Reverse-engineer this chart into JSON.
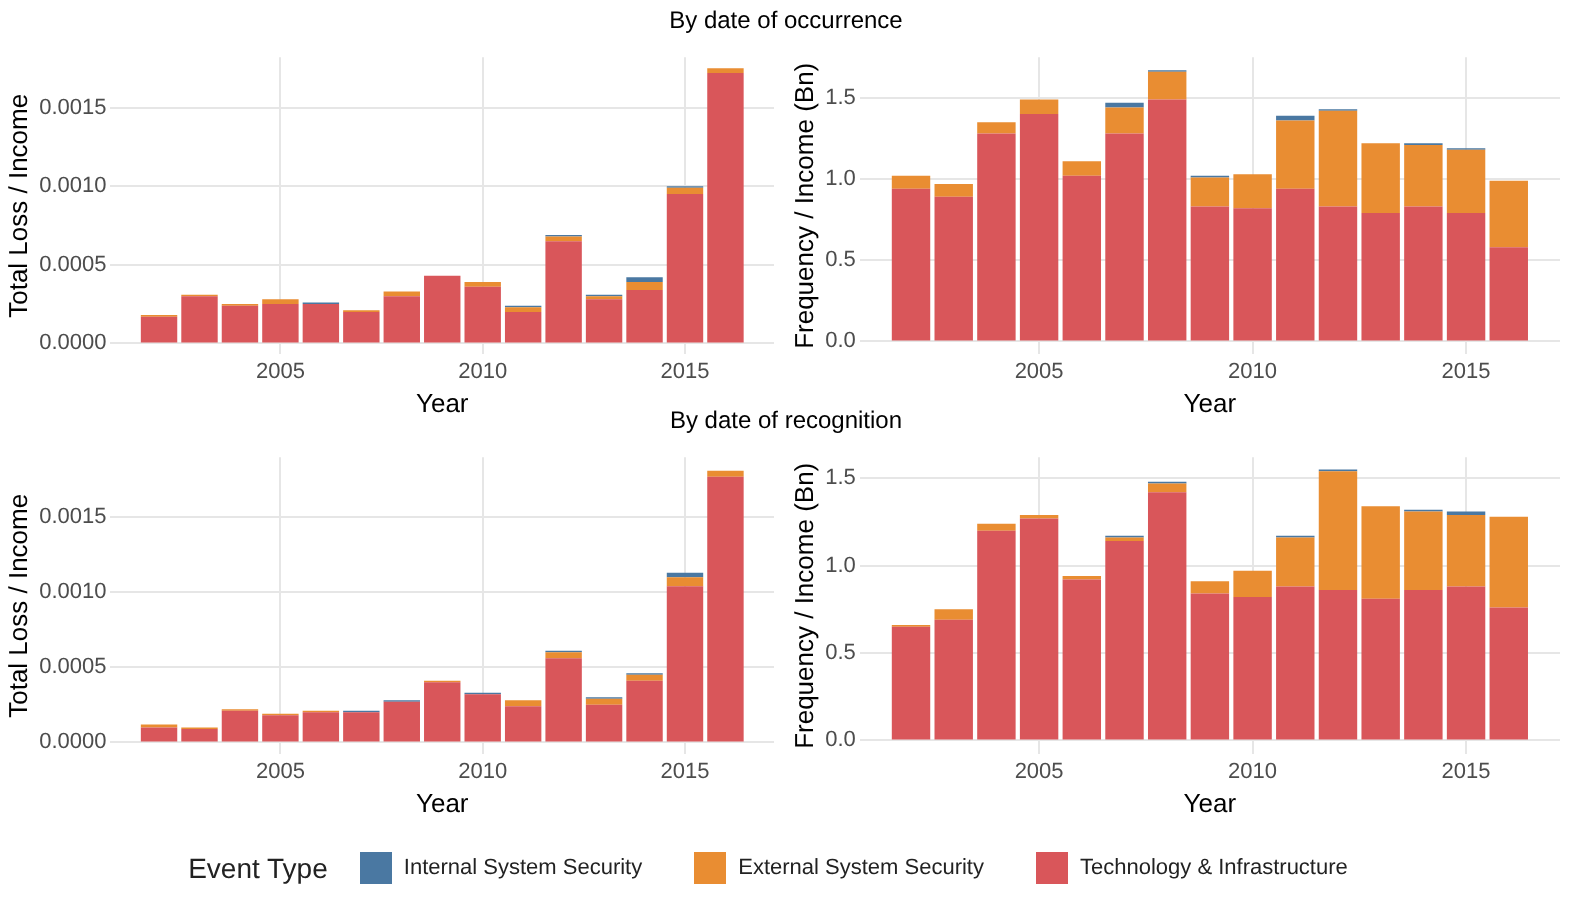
{
  "chart_data": [
    {
      "type": "bar",
      "title": "By date of occurrence",
      "xlabel": "Year",
      "ylabel": "Total Loss / Income",
      "stacked": true,
      "grid": true,
      "legend": "bottom",
      "legend_title": "Event Type",
      "x": [
        2002,
        2003,
        2004,
        2005,
        2006,
        2007,
        2008,
        2009,
        2010,
        2011,
        2012,
        2013,
        2014,
        2015,
        2016
      ],
      "xlim": [
        2000.8,
        2017.2
      ],
      "xticks": [
        2005,
        2010,
        2015
      ],
      "ylim": [
        -7e-05,
        0.00182
      ],
      "yticks": [
        {
          "value": 0,
          "label": "0.0000"
        },
        {
          "value": 0.0005,
          "label": "0.0005"
        },
        {
          "value": 0.001,
          "label": "0.0010"
        },
        {
          "value": 0.0015,
          "label": "0.0015"
        }
      ],
      "series": [
        {
          "name": "Technology & Infrastructure",
          "color": "#d9565a",
          "values": [
            0.00017,
            0.0003,
            0.00024,
            0.00025,
            0.00025,
            0.0002,
            0.0003,
            0.00043,
            0.00036,
            0.0002,
            0.00065,
            0.00028,
            0.00034,
            0.00095,
            0.00172
          ]
        },
        {
          "name": "External System Security",
          "color": "#e98d32",
          "values": [
            1e-05,
            1e-05,
            1e-05,
            3e-05,
            null,
            1e-05,
            3e-05,
            null,
            3e-05,
            3e-05,
            3e-05,
            2e-05,
            5e-05,
            4e-05,
            3e-05
          ]
        },
        {
          "name": "Internal System Security",
          "color": "#4a78a2",
          "values": [
            null,
            null,
            null,
            null,
            1e-05,
            null,
            null,
            null,
            null,
            1e-05,
            1e-05,
            1e-05,
            3e-05,
            1e-05,
            null
          ]
        }
      ]
    },
    {
      "type": "bar",
      "xlabel": "Year",
      "ylabel": "Frequency / Income (Bn)",
      "stacked": true,
      "grid": true,
      "x": [
        2002,
        2003,
        2004,
        2005,
        2006,
        2007,
        2008,
        2009,
        2010,
        2011,
        2012,
        2013,
        2014,
        2015,
        2016
      ],
      "xlim": [
        2000.8,
        2017.2
      ],
      "xticks": [
        2005,
        2010,
        2015
      ],
      "ylim": [
        -0.08,
        1.75
      ],
      "yticks": [
        {
          "value": 0,
          "label": "0.0"
        },
        {
          "value": 0.5,
          "label": "0.5"
        },
        {
          "value": 1,
          "label": "1.0"
        },
        {
          "value": 1.5,
          "label": "1.5"
        }
      ],
      "series": [
        {
          "color": "#d9565a",
          "values": [
            0.94,
            0.89,
            1.28,
            1.4,
            1.02,
            1.28,
            1.49,
            0.83,
            0.82,
            0.94,
            0.83,
            0.79,
            0.83,
            0.79,
            0.58
          ]
        },
        {
          "color": "#e98d32",
          "values": [
            0.08,
            0.08,
            0.07,
            0.09,
            0.09,
            0.16,
            0.17,
            0.18,
            0.21,
            0.42,
            0.59,
            0.43,
            0.38,
            0.39,
            0.41
          ]
        },
        {
          "color": "#4a78a2",
          "values": [
            null,
            null,
            null,
            null,
            null,
            0.03,
            0.01,
            0.01,
            null,
            0.03,
            0.01,
            null,
            0.01,
            0.01,
            null
          ]
        }
      ]
    },
    {
      "type": "bar",
      "title": "By date of recognition",
      "xlabel": "Year",
      "ylabel": "Total Loss / Income",
      "stacked": true,
      "grid": true,
      "x": [
        2002,
        2003,
        2004,
        2005,
        2006,
        2007,
        2008,
        2009,
        2010,
        2011,
        2012,
        2013,
        2014,
        2015,
        2016
      ],
      "xlim": [
        2000.8,
        2017.2
      ],
      "xticks": [
        2005,
        2010,
        2015
      ],
      "ylim": [
        -8e-05,
        0.0019
      ],
      "yticks": [
        {
          "value": 0,
          "label": "0.0000"
        },
        {
          "value": 0.0005,
          "label": "0.0005"
        },
        {
          "value": 0.001,
          "label": "0.0010"
        },
        {
          "value": 0.0015,
          "label": "0.0015"
        }
      ],
      "series": [
        {
          "color": "#d9565a",
          "values": [
            0.0001,
            9e-05,
            0.00021,
            0.00018,
            0.0002,
            0.0002,
            0.00027,
            0.0004,
            0.00032,
            0.00024,
            0.00056,
            0.00025,
            0.00041,
            0.00104,
            0.00177
          ]
        },
        {
          "color": "#e98d32",
          "values": [
            2e-05,
            1e-05,
            1e-05,
            1e-05,
            1e-05,
            null,
            null,
            1e-05,
            null,
            4e-05,
            4e-05,
            4e-05,
            4e-05,
            6e-05,
            4e-05
          ]
        },
        {
          "color": "#4a78a2",
          "values": [
            null,
            null,
            null,
            null,
            null,
            1e-05,
            1e-05,
            null,
            1e-05,
            null,
            1e-05,
            1e-05,
            1e-05,
            3e-05,
            null
          ]
        }
      ]
    },
    {
      "type": "bar",
      "xlabel": "Year",
      "ylabel": "Frequency / Income (Bn)",
      "stacked": true,
      "grid": true,
      "x": [
        2002,
        2003,
        2004,
        2005,
        2006,
        2007,
        2008,
        2009,
        2010,
        2011,
        2012,
        2013,
        2014,
        2015,
        2016
      ],
      "xlim": [
        2000.8,
        2017.2
      ],
      "xticks": [
        2005,
        2010,
        2015
      ],
      "ylim": [
        -0.08,
        1.62
      ],
      "yticks": [
        {
          "value": 0,
          "label": "0.0"
        },
        {
          "value": 0.5,
          "label": "0.5"
        },
        {
          "value": 1,
          "label": "1.0"
        },
        {
          "value": 1.5,
          "label": "1.5"
        }
      ],
      "series": [
        {
          "color": "#d9565a",
          "values": [
            0.65,
            0.69,
            1.2,
            1.27,
            0.92,
            1.14,
            1.42,
            0.84,
            0.82,
            0.88,
            0.86,
            0.81,
            0.86,
            0.88,
            0.76
          ]
        },
        {
          "color": "#e98d32",
          "values": [
            0.01,
            0.06,
            0.04,
            0.02,
            0.02,
            0.02,
            0.05,
            0.07,
            0.15,
            0.28,
            0.68,
            0.53,
            0.45,
            0.41,
            0.52
          ]
        },
        {
          "color": "#4a78a2",
          "values": [
            null,
            null,
            null,
            null,
            null,
            0.01,
            0.01,
            null,
            null,
            0.01,
            0.01,
            null,
            0.01,
            0.02,
            null
          ]
        }
      ]
    }
  ]
}
